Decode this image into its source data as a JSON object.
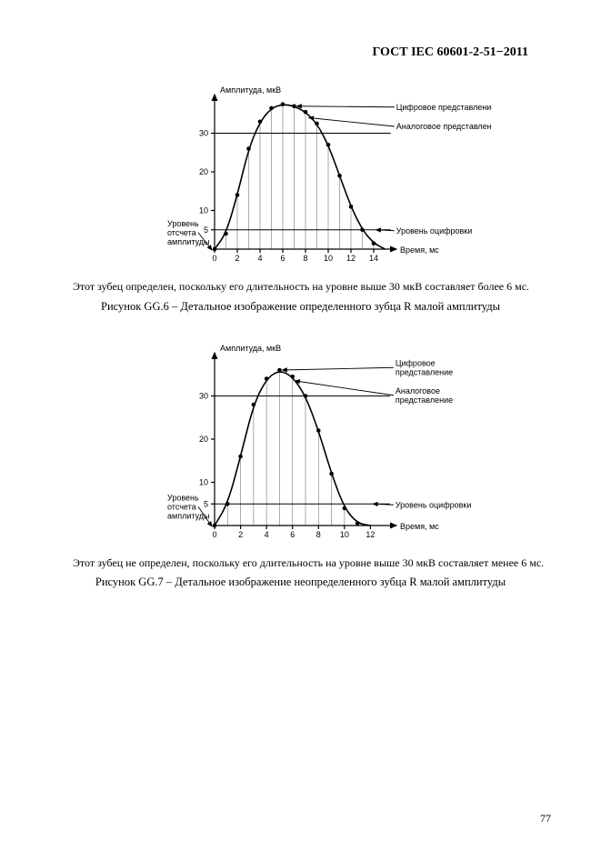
{
  "header": "ГОСТ IEC 60601-2-51−2011",
  "page_number": "77",
  "fig6": {
    "y_axis_title": "Амплитуда, мкВ",
    "x_axis_title": "Время, мс",
    "y_left_label_1": "Уровень",
    "y_left_label_2": "отсчета",
    "y_left_label_3": "амплитуды",
    "ann_digital": "Цифровое представление",
    "ann_analog": "Аналоговое представление",
    "ann_level": "Уровень оцифровки",
    "y_ticks": [
      5,
      10,
      20,
      30
    ],
    "x_ticks": [
      0,
      2,
      4,
      6,
      8,
      10,
      12,
      14
    ],
    "xlim": [
      0,
      16
    ],
    "ylim": [
      0,
      40
    ],
    "ref_lines_y": [
      5,
      30
    ],
    "curve_points": [
      {
        "x": 0,
        "y": 0
      },
      {
        "x": 1,
        "y": 4
      },
      {
        "x": 2,
        "y": 14
      },
      {
        "x": 3,
        "y": 26
      },
      {
        "x": 4,
        "y": 33
      },
      {
        "x": 5,
        "y": 36.5
      },
      {
        "x": 6,
        "y": 37.5
      },
      {
        "x": 7,
        "y": 37
      },
      {
        "x": 8,
        "y": 35.5
      },
      {
        "x": 9,
        "y": 32.5
      },
      {
        "x": 10,
        "y": 27
      },
      {
        "x": 11,
        "y": 19
      },
      {
        "x": 12,
        "y": 11
      },
      {
        "x": 13,
        "y": 5
      },
      {
        "x": 14,
        "y": 1.5
      },
      {
        "x": 15,
        "y": 0
      }
    ],
    "sample_x": [
      0,
      1,
      2,
      3,
      4,
      5,
      6,
      7,
      8,
      9,
      10,
      11,
      12,
      13,
      14
    ],
    "marker_radius": 2.3
  },
  "fig7": {
    "y_axis_title": "Амплитуда, мкВ",
    "x_axis_title": "Время, мс",
    "y_left_label_1": "Уровень",
    "y_left_label_2": "отсчета",
    "y_left_label_3": "амплитуды",
    "ann_digital_1": "Цифровое",
    "ann_digital_2": "представление",
    "ann_analog_1": "Аналоговое",
    "ann_analog_2": "представление",
    "ann_level": "Уровень оцифровки",
    "y_ticks": [
      5,
      10,
      20,
      30
    ],
    "x_ticks": [
      0,
      2,
      4,
      6,
      8,
      10,
      12
    ],
    "xlim": [
      0,
      14
    ],
    "ylim": [
      0,
      40
    ],
    "ref_lines_y": [
      5,
      30
    ],
    "curve_points": [
      {
        "x": 0,
        "y": 0
      },
      {
        "x": 1,
        "y": 5
      },
      {
        "x": 2,
        "y": 16
      },
      {
        "x": 3,
        "y": 28
      },
      {
        "x": 4,
        "y": 34
      },
      {
        "x": 5,
        "y": 36
      },
      {
        "x": 6,
        "y": 34.5
      },
      {
        "x": 7,
        "y": 30
      },
      {
        "x": 8,
        "y": 22
      },
      {
        "x": 9,
        "y": 12
      },
      {
        "x": 10,
        "y": 4
      },
      {
        "x": 11,
        "y": 0.5
      },
      {
        "x": 12,
        "y": 0
      }
    ],
    "sample_x": [
      0,
      1,
      2,
      3,
      4,
      5,
      6,
      7,
      8,
      9,
      10,
      11
    ],
    "marker_radius": 2.3
  },
  "text6": "Этот зубец определен, поскольку его длительность на уровне выше 30 мкВ  составляет более 6 мс.",
  "caption6": "Рисунок GG.6 – Детальное изображение определенного зубца R  малой амплитуды",
  "text7": "Этот зубец не определен, поскольку его длительность на уровне выше 30 мкВ составляет менее 6 мс.",
  "caption7": "Рисунок GG.7 – Детальное изображение неопределенного зубца R  малой амплитуды"
}
